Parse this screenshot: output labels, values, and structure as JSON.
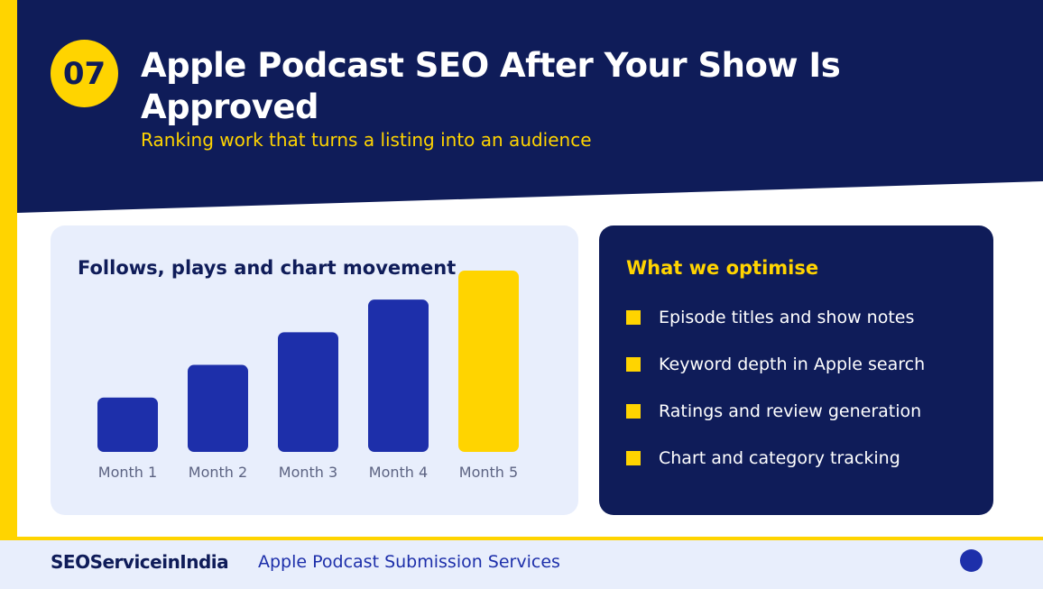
{
  "colors": {
    "navy": "#0F1C59",
    "accent": "#FFD400",
    "bar": "#1D2FAA",
    "card": "#E8EEFC"
  },
  "header": {
    "badge": "07",
    "title": "Apple Podcast SEO After Your Show Is Approved",
    "subtitle": "Ranking work that turns a listing into an audience"
  },
  "chart_data": {
    "type": "bar",
    "title": "Follows, plays and chart movement",
    "categories": [
      "Month 1",
      "Month 2",
      "Month 3",
      "Month 4",
      "Month 5"
    ],
    "values": [
      30,
      48,
      66,
      84,
      100
    ],
    "highlight_index": 4,
    "ylim": [
      0,
      100
    ],
    "grid": false,
    "xlabel": "",
    "ylabel": ""
  },
  "optimise": {
    "title": "What we optimise",
    "items": [
      "Episode titles and show notes",
      "Keyword depth in Apple search",
      "Ratings and review generation",
      "Chart and category tracking"
    ]
  },
  "footer": {
    "brand": "SEOServiceinIndia",
    "text": "Apple Podcast Submission Services"
  }
}
